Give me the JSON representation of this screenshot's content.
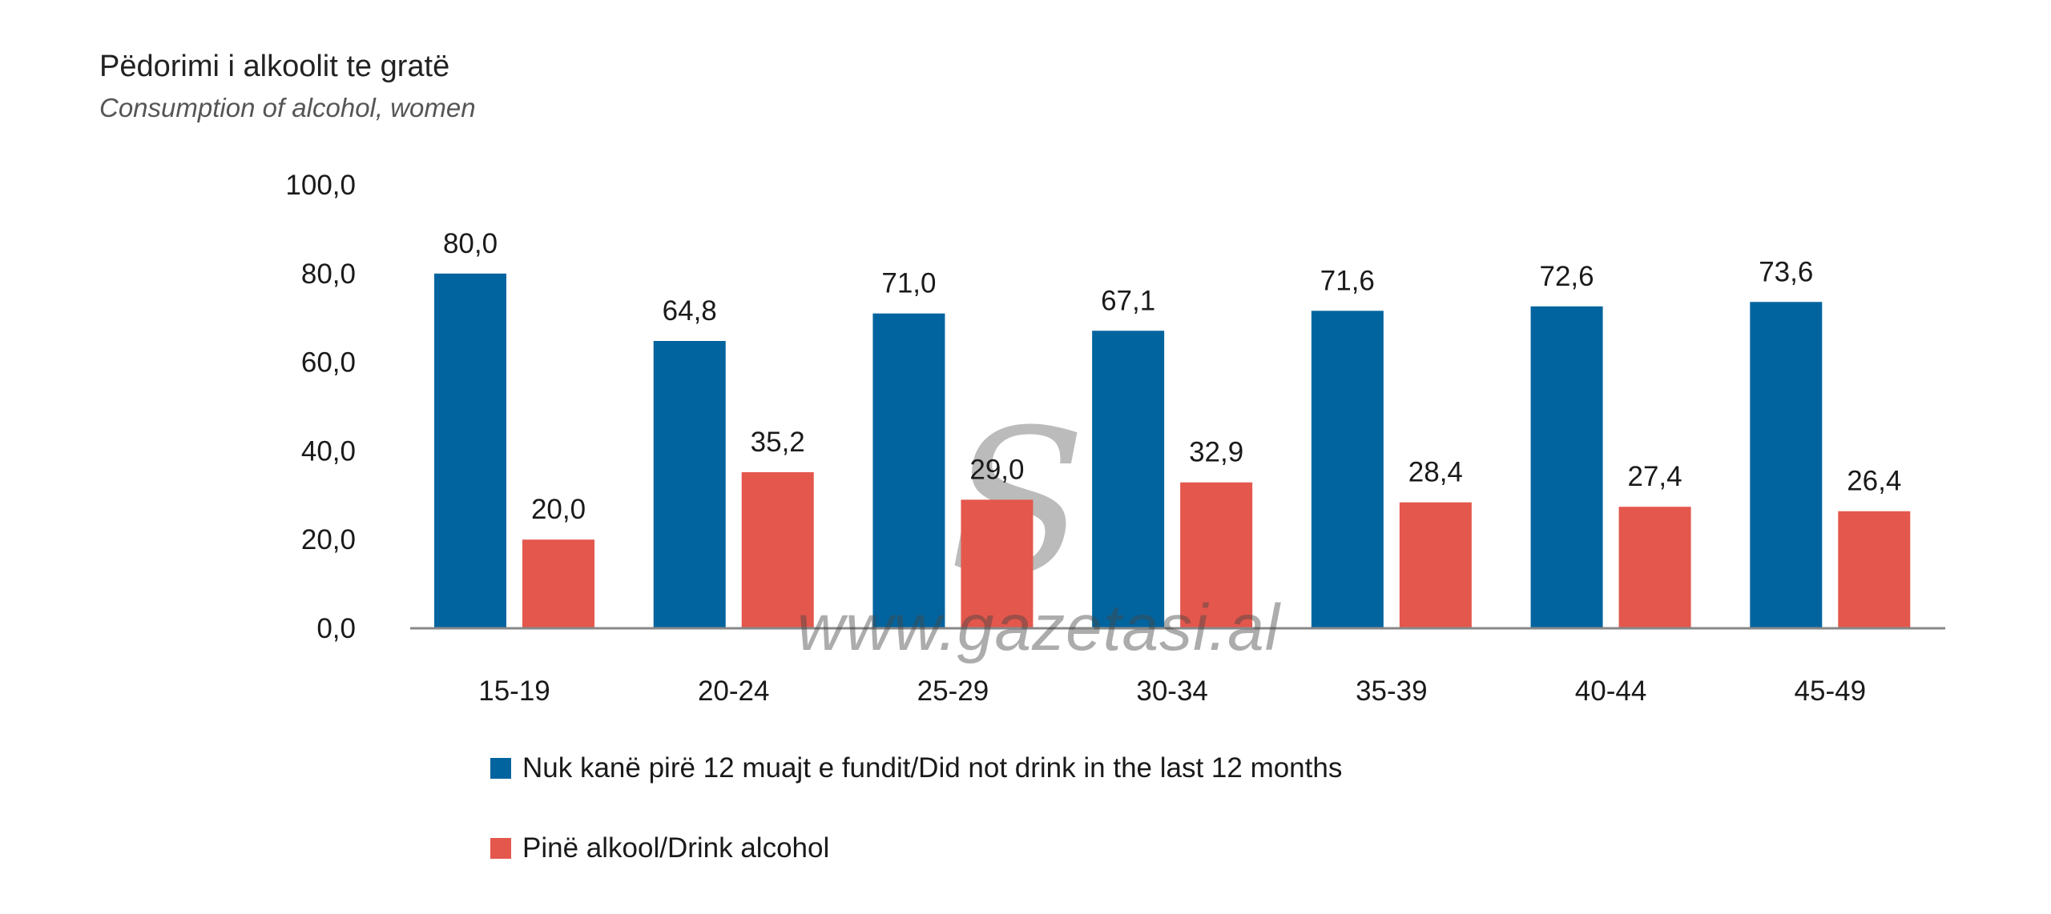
{
  "title": "Pëdorimi i alkoolit te gratë",
  "subtitle": "Consumption of alcohol, women",
  "watermark": {
    "logo_text": "Si",
    "url_text": "www.gazetasi.al"
  },
  "colors": {
    "series1": "#01649f",
    "series2": "#e4574c",
    "axis": "#888888",
    "text": "#1a1a1a"
  },
  "chart_data": {
    "type": "bar",
    "title": "Pëdorimi i alkoolit te gratë",
    "subtitle": "Consumption of alcohol, women",
    "categories": [
      "15-19",
      "20-24",
      "25-29",
      "30-34",
      "35-39",
      "40-44",
      "45-49"
    ],
    "series": [
      {
        "name": "Nuk kanë pirë 12 muajt e fundit/Did not drink in the last 12 months",
        "values": [
          80.0,
          64.8,
          71.0,
          67.1,
          71.6,
          72.6,
          73.6
        ],
        "labels": [
          "80,0",
          "64,8",
          "71,0",
          "67,1",
          "71,6",
          "72,6",
          "73,6"
        ]
      },
      {
        "name": "Pinë alkool/Drink alcohol",
        "values": [
          20.0,
          35.2,
          29.0,
          32.9,
          28.4,
          27.4,
          26.4
        ],
        "labels": [
          "20,0",
          "35,2",
          "29,0",
          "32,9",
          "28,4",
          "27,4",
          "26,4"
        ]
      }
    ],
    "yticks": [
      0,
      20,
      40,
      60,
      80,
      100
    ],
    "ytick_labels": [
      "0,0",
      "20,0",
      "40,0",
      "60,0",
      "80,0",
      "100,0"
    ],
    "ylim": [
      0,
      100
    ],
    "xlabel": "",
    "ylabel": "",
    "grid": false,
    "legend_position": "bottom"
  }
}
